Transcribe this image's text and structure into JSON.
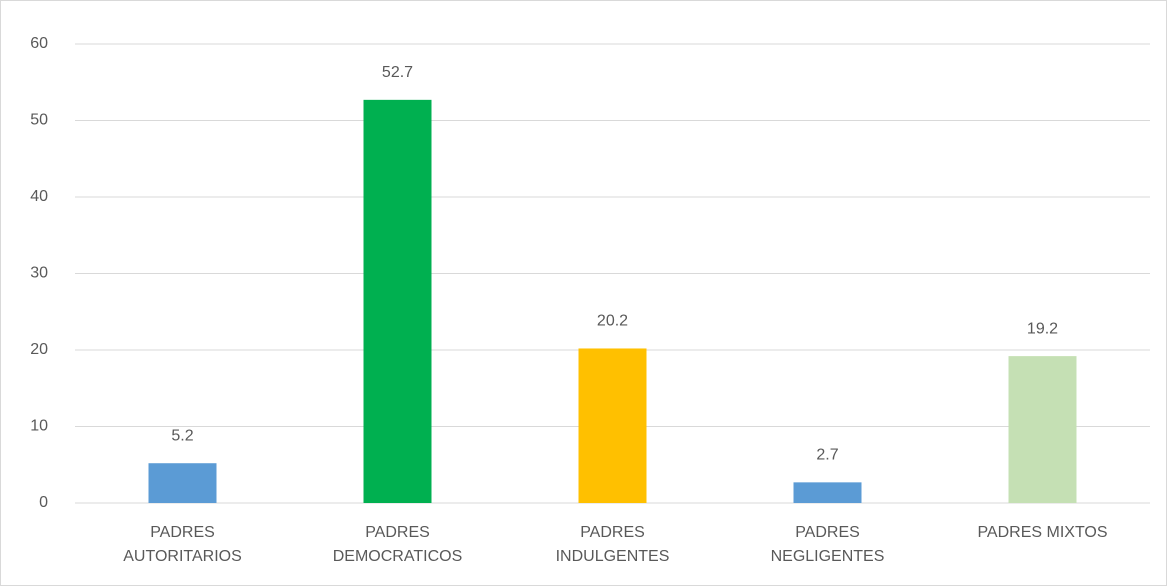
{
  "chart_data": {
    "type": "bar",
    "categories": [
      [
        "PADRES",
        "AUTORITARIOS"
      ],
      [
        "PADRES",
        "DEMOCRATICOS"
      ],
      [
        "PADRES",
        "INDULGENTES"
      ],
      [
        "PADRES",
        "NEGLIGENTES"
      ],
      [
        "PADRES MIXTOS"
      ]
    ],
    "values": [
      5.2,
      52.7,
      20.2,
      2.7,
      19.2
    ],
    "colors": [
      "#5b9bd5",
      "#00b050",
      "#ffc000",
      "#5b9bd5",
      "#c5e0b4"
    ],
    "ylim": [
      0,
      60
    ],
    "yticks": [
      0,
      10,
      20,
      30,
      40,
      50,
      60
    ],
    "grid": true
  }
}
